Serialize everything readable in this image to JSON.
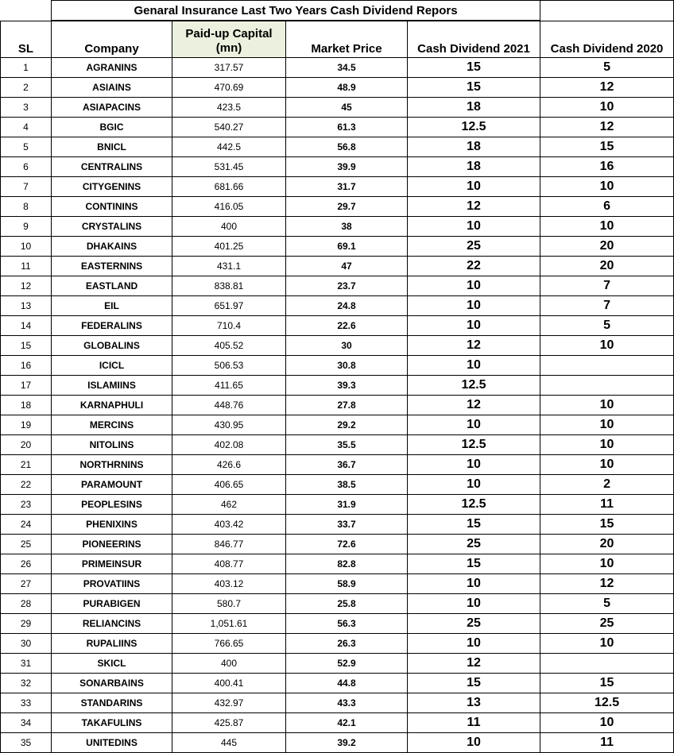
{
  "title": "Genaral Insurance Last Two Years Cash Dividend Repors",
  "headers": {
    "sl": "SL",
    "company": "Company",
    "paid_up_capital": "Paid-up Capital (mn)",
    "market_price": "Market Price",
    "dividend_2021": "Cash Dividend 2021",
    "dividend_2020": "Cash Dividend 2020"
  },
  "rows": [
    {
      "sl": "1",
      "company": "AGRANINS",
      "paid": "317.57",
      "price": "34.5",
      "d2021": "15",
      "d2020": "5"
    },
    {
      "sl": "2",
      "company": "ASIAINS",
      "paid": "470.69",
      "price": "48.9",
      "d2021": "15",
      "d2020": "12"
    },
    {
      "sl": "3",
      "company": "ASIAPACINS",
      "paid": "423.5",
      "price": "45",
      "d2021": "18",
      "d2020": "10"
    },
    {
      "sl": "4",
      "company": "BGIC",
      "paid": "540.27",
      "price": "61.3",
      "d2021": "12.5",
      "d2020": "12"
    },
    {
      "sl": "5",
      "company": "BNICL",
      "paid": "442.5",
      "price": "56.8",
      "d2021": "18",
      "d2020": "15"
    },
    {
      "sl": "6",
      "company": "CENTRALINS",
      "paid": "531.45",
      "price": "39.9",
      "d2021": "18",
      "d2020": "16"
    },
    {
      "sl": "7",
      "company": "CITYGENINS",
      "paid": "681.66",
      "price": "31.7",
      "d2021": "10",
      "d2020": "10"
    },
    {
      "sl": "8",
      "company": "CONTININS",
      "paid": "416.05",
      "price": "29.7",
      "d2021": "12",
      "d2020": "6"
    },
    {
      "sl": "9",
      "company": "CRYSTALINS",
      "paid": "400",
      "price": "38",
      "d2021": "10",
      "d2020": "10"
    },
    {
      "sl": "10",
      "company": "DHAKAINS",
      "paid": "401.25",
      "price": "69.1",
      "d2021": "25",
      "d2020": "20"
    },
    {
      "sl": "11",
      "company": "EASTERNINS",
      "paid": "431.1",
      "price": "47",
      "d2021": "22",
      "d2020": "20"
    },
    {
      "sl": "12",
      "company": "EASTLAND",
      "paid": "838.81",
      "price": "23.7",
      "d2021": "10",
      "d2020": "7"
    },
    {
      "sl": "13",
      "company": "EIL",
      "paid": "651.97",
      "price": "24.8",
      "d2021": "10",
      "d2020": "7"
    },
    {
      "sl": "14",
      "company": "FEDERALINS",
      "paid": "710.4",
      "price": "22.6",
      "d2021": "10",
      "d2020": "5"
    },
    {
      "sl": "15",
      "company": "GLOBALINS",
      "paid": "405.52",
      "price": "30",
      "d2021": "12",
      "d2020": "10"
    },
    {
      "sl": "16",
      "company": "ICICL",
      "paid": "506.53",
      "price": "30.8",
      "d2021": "10",
      "d2020": ""
    },
    {
      "sl": "17",
      "company": "ISLAMIINS",
      "paid": "411.65",
      "price": "39.3",
      "d2021": "12.5",
      "d2020": ""
    },
    {
      "sl": "18",
      "company": "KARNAPHULI",
      "paid": "448.76",
      "price": "27.8",
      "d2021": "12",
      "d2020": "10"
    },
    {
      "sl": "19",
      "company": "MERCINS",
      "paid": "430.95",
      "price": "29.2",
      "d2021": "10",
      "d2020": "10"
    },
    {
      "sl": "20",
      "company": "NITOLINS",
      "paid": "402.08",
      "price": "35.5",
      "d2021": "12.5",
      "d2020": "10"
    },
    {
      "sl": "21",
      "company": "NORTHRNINS",
      "paid": "426.6",
      "price": "36.7",
      "d2021": "10",
      "d2020": "10"
    },
    {
      "sl": "22",
      "company": "PARAMOUNT",
      "paid": "406.65",
      "price": "38.5",
      "d2021": "10",
      "d2020": "2"
    },
    {
      "sl": "23",
      "company": "PEOPLESINS",
      "paid": "462",
      "price": "31.9",
      "d2021": "12.5",
      "d2020": "11"
    },
    {
      "sl": "24",
      "company": "PHENIXINS",
      "paid": "403.42",
      "price": "33.7",
      "d2021": "15",
      "d2020": "15"
    },
    {
      "sl": "25",
      "company": "PIONEERINS",
      "paid": "846.77",
      "price": "72.6",
      "d2021": "25",
      "d2020": "20"
    },
    {
      "sl": "26",
      "company": "PRIMEINSUR",
      "paid": "408.77",
      "price": "82.8",
      "d2021": "15",
      "d2020": "10"
    },
    {
      "sl": "27",
      "company": "PROVATIINS",
      "paid": "403.12",
      "price": "58.9",
      "d2021": "10",
      "d2020": "12"
    },
    {
      "sl": "28",
      "company": "PURABIGEN",
      "paid": "580.7",
      "price": "25.8",
      "d2021": "10",
      "d2020": "5"
    },
    {
      "sl": "29",
      "company": "RELIANCINS",
      "paid": "1,051.61",
      "price": "56.3",
      "d2021": "25",
      "d2020": "25"
    },
    {
      "sl": "30",
      "company": "RUPALIINS",
      "paid": "766.65",
      "price": "26.3",
      "d2021": "10",
      "d2020": "10"
    },
    {
      "sl": "31",
      "company": "SKICL",
      "paid": "400",
      "price": "52.9",
      "d2021": "12",
      "d2020": ""
    },
    {
      "sl": "32",
      "company": "SONARBAINS",
      "paid": "400.41",
      "price": "44.8",
      "d2021": "15",
      "d2020": "15"
    },
    {
      "sl": "33",
      "company": "STANDARINS",
      "paid": "432.97",
      "price": "43.3",
      "d2021": "13",
      "d2020": "12.5"
    },
    {
      "sl": "34",
      "company": "TAKAFULINS",
      "paid": "425.87",
      "price": "42.1",
      "d2021": "11",
      "d2020": "10"
    },
    {
      "sl": "35",
      "company": "UNITEDINS",
      "paid": "445",
      "price": "39.2",
      "d2021": "10",
      "d2020": "11"
    }
  ]
}
